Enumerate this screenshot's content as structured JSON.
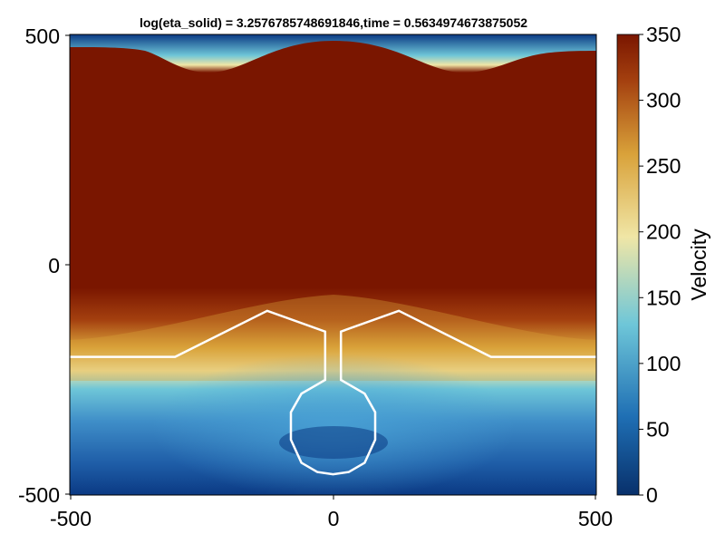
{
  "chart_data": {
    "type": "heatmap",
    "title": "log(eta_solid) = 3.2576785748691846,time = 0.5634974673875052",
    "xlim": [
      -500,
      500
    ],
    "ylim": [
      -500,
      500
    ],
    "x_ticks": [
      "-500",
      "0",
      "500"
    ],
    "y_ticks": [
      "500",
      "0",
      "-500"
    ],
    "colorbar": {
      "label": "Velocity",
      "range": [
        0,
        350
      ],
      "ticks": [
        "350",
        "300",
        "250",
        "200",
        "150",
        "100",
        "50",
        "0"
      ],
      "colormap": [
        "#08306b",
        "#1f6fb4",
        "#6ec6d8",
        "#f0e6a6",
        "#d9a23a",
        "#a4400f",
        "#7a1600"
      ]
    },
    "contour": {
      "color": "#ffffff",
      "x": [
        -500,
        -300,
        -125,
        -15,
        -15,
        -30,
        -60,
        -80,
        -80,
        -60,
        -30,
        0,
        30,
        60,
        80,
        80,
        60,
        30,
        15,
        15,
        125,
        300,
        500
      ],
      "y": [
        -200,
        -200,
        -100,
        -145,
        -250,
        -260,
        -280,
        -320,
        -380,
        -430,
        -450,
        -455,
        -450,
        -430,
        -380,
        -320,
        -280,
        -260,
        -250,
        -145,
        -100,
        -200,
        -200
      ]
    }
  }
}
